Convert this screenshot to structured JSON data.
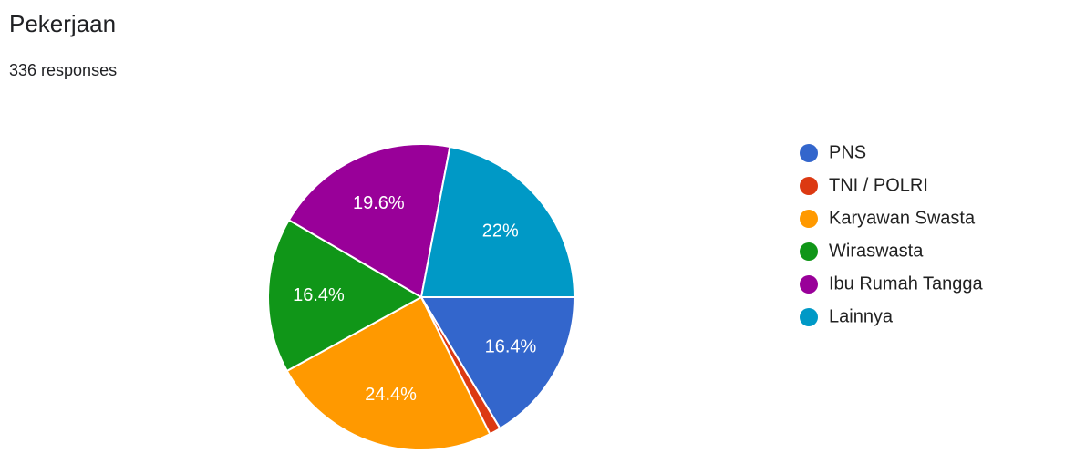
{
  "chart_data": {
    "type": "pie",
    "title": "Pekerjaan",
    "subtitle": "336 responses",
    "categories": [
      "PNS",
      "TNI / POLRI",
      "Karyawan Swasta",
      "Wiraswasta",
      "Ibu Rumah Tangga",
      "Lainnya"
    ],
    "values": [
      16.4,
      1.2,
      24.4,
      16.4,
      19.6,
      22
    ],
    "value_labels": [
      "16.4%",
      null,
      "24.4%",
      "16.4%",
      "19.6%",
      "22%"
    ],
    "colors": [
      "#3366cc",
      "#dc3912",
      "#ff9900",
      "#109618",
      "#990099",
      "#0099c6"
    ],
    "legend": "right"
  }
}
